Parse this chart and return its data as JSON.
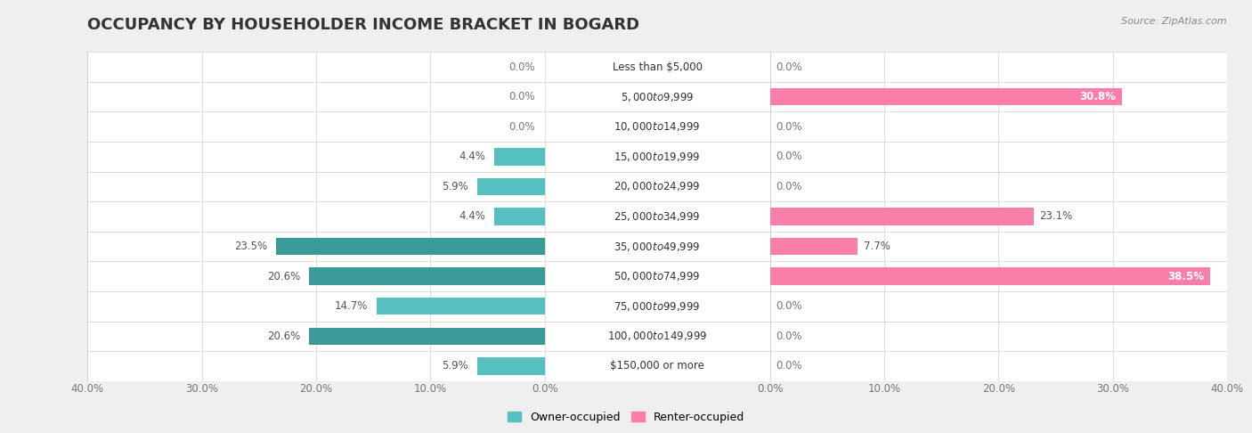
{
  "title": "OCCUPANCY BY HOUSEHOLDER INCOME BRACKET IN BOGARD",
  "source": "Source: ZipAtlas.com",
  "categories": [
    "Less than $5,000",
    "$5,000 to $9,999",
    "$10,000 to $14,999",
    "$15,000 to $19,999",
    "$20,000 to $24,999",
    "$25,000 to $34,999",
    "$35,000 to $49,999",
    "$50,000 to $74,999",
    "$75,000 to $99,999",
    "$100,000 to $149,999",
    "$150,000 or more"
  ],
  "owner_values": [
    0.0,
    0.0,
    0.0,
    4.4,
    5.9,
    4.4,
    23.5,
    20.6,
    14.7,
    20.6,
    5.9
  ],
  "renter_values": [
    0.0,
    30.8,
    0.0,
    0.0,
    0.0,
    23.1,
    7.7,
    38.5,
    0.0,
    0.0,
    0.0
  ],
  "owner_color": "#56bfbf",
  "renter_color": "#f77faa",
  "owner_color_dark": "#3a9999",
  "renter_color_light": "#f8b8cc",
  "bar_height": 0.58,
  "xlim": 40.0,
  "background_color": "#efefef",
  "row_bg_color": "#ffffff",
  "row_alt_color": "#f5f5f5",
  "title_fontsize": 13,
  "label_fontsize": 8.5,
  "cat_fontsize": 8.5,
  "tick_fontsize": 8.5,
  "legend_fontsize": 9,
  "source_fontsize": 8
}
